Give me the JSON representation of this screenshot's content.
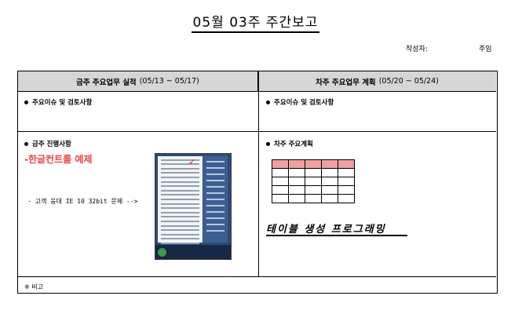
{
  "title": "05월 03주 주간보고",
  "meta": {
    "writer_label": "작성자:",
    "rank_label": "주임"
  },
  "columns": {
    "left": {
      "label": "금주 주요업무 실적",
      "range": "(05/13 ~ 05/17)"
    },
    "right": {
      "label": "차주 주요업무 계획",
      "range": "(05/20 ~ 05/24)"
    }
  },
  "rows": {
    "issues_left": "주요이슈 및 검토사항",
    "issues_right": "주요이슈 및 검토사항",
    "progress_left": "금주 진행사항",
    "plan_right": "차주 주요계획"
  },
  "progress": {
    "example_title": "-한글컨트롤 예제",
    "issue_line": "- 고객 웅대 IE 10 32bit 문제 -->"
  },
  "plan": {
    "handwritten": "테이블 생성 프로그래밍",
    "table": {
      "rows": 5,
      "cols": 5,
      "header_color": "#f0a0a0"
    }
  },
  "footer": {
    "note": "※ 비고"
  },
  "icons": {
    "bullet": "bullet-icon",
    "checkmark": "red-check-icon"
  }
}
